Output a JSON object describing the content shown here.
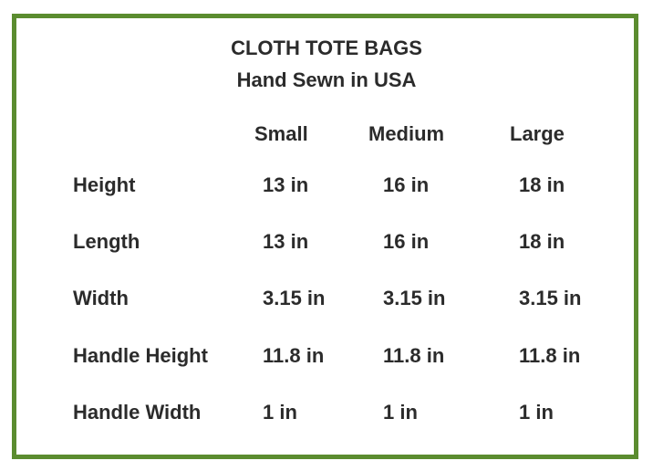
{
  "title": "CLOTH TOTE BAGS",
  "subtitle": "Hand Sewn in USA",
  "columns": [
    "Small",
    "Medium",
    "Large"
  ],
  "rows": [
    {
      "label": "Height",
      "values": [
        "13 in",
        "16 in",
        "18 in"
      ]
    },
    {
      "label": "Length",
      "values": [
        "13 in",
        "16 in",
        "18 in"
      ]
    },
    {
      "label": "Width",
      "values": [
        "3.15 in",
        "3.15 in",
        "3.15 in"
      ]
    },
    {
      "label": "Handle Height",
      "values": [
        "11.8 in",
        "11.8 in",
        "11.8 in"
      ]
    },
    {
      "label": "Handle Width",
      "values": [
        "1 in",
        "1 in",
        "1 in"
      ]
    }
  ],
  "colors": {
    "border": "#5b8c2f",
    "text": "#2b2b2b"
  }
}
